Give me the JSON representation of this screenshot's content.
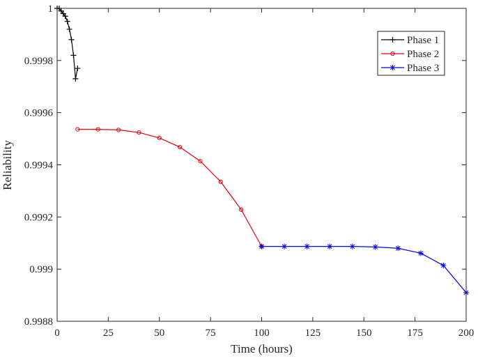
{
  "chart_data": {
    "type": "line",
    "title": "",
    "xlabel": "Time (hours)",
    "ylabel": "Reliability",
    "xlim": [
      0,
      200
    ],
    "ylim": [
      0.9988,
      1
    ],
    "xticks": [
      0,
      25,
      50,
      75,
      100,
      125,
      150,
      175,
      200
    ],
    "xtick_labels": [
      "0",
      "25",
      "50",
      "75",
      "100",
      "125",
      "150",
      "175",
      "200"
    ],
    "yticks": [
      0.9988,
      0.999,
      0.9992,
      0.9994,
      0.9996,
      0.9998,
      1
    ],
    "ytick_labels": [
      "0.9988",
      "0.999",
      "0.9992",
      "0.9994",
      "0.9996",
      "0.9998",
      "1"
    ],
    "grid": false,
    "legend_position": "top-right",
    "series": [
      {
        "name": "Phase 1",
        "color": "#000000",
        "marker": "plus",
        "x": [
          0,
          1,
          2,
          3,
          4,
          5,
          6,
          7,
          8,
          9,
          10
        ],
        "y": [
          1.0,
          1.0,
          0.99999,
          0.99998,
          0.99997,
          0.99995,
          0.99992,
          0.99988,
          0.99982,
          0.99973,
          0.99977
        ]
      },
      {
        "name": "Phase 2",
        "color": "#e8000b",
        "marker": "circle",
        "x": [
          10,
          20,
          30,
          40,
          50,
          60,
          70,
          80,
          90,
          100
        ],
        "y": [
          0.999536,
          0.999536,
          0.999534,
          0.999524,
          0.999503,
          0.999468,
          0.999414,
          0.999335,
          0.999228,
          0.999087
        ]
      },
      {
        "name": "Phase 3",
        "color": "#0000ff",
        "marker": "asterisk",
        "x": [
          100,
          111.1,
          122.2,
          133.3,
          144.4,
          155.6,
          166.7,
          177.8,
          188.9,
          200
        ],
        "y": [
          0.999087,
          0.999087,
          0.999087,
          0.999087,
          0.999087,
          0.999085,
          0.99908,
          0.999061,
          0.999014,
          0.99891
        ]
      }
    ]
  }
}
